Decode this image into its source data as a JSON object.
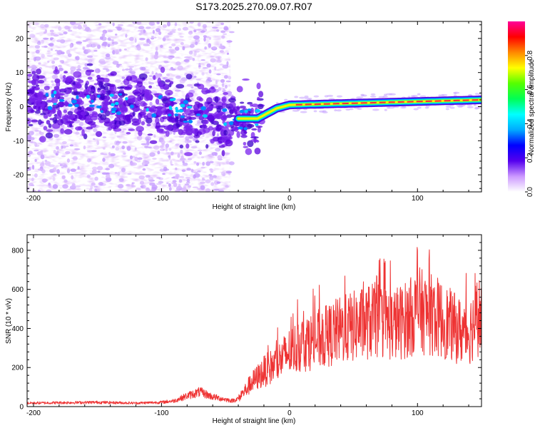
{
  "title": "S173.2025.270.09.07.R07",
  "chart_data": [
    {
      "type": "heatmap",
      "xlabel": "Height of straight line (km)",
      "ylabel": "Frequency (Hz)",
      "xlim": [
        -205,
        150
      ],
      "ylim": [
        -25,
        25
      ],
      "x_ticks": [
        -200,
        -100,
        0,
        100
      ],
      "y_ticks": [
        -20,
        -10,
        0,
        10,
        20
      ],
      "colorbar": {
        "label": "Normalized spectral amplitude",
        "range": [
          0,
          1
        ],
        "ticks": [
          "0.0",
          "0.2",
          "0.4",
          "0.6",
          "0.8"
        ],
        "tick_values": [
          0.0,
          0.2,
          0.4,
          0.6,
          0.8
        ],
        "colors": [
          "#ffffff",
          "#cc99ff",
          "#5500ee",
          "#0000ff",
          "#00aaff",
          "#00ffff",
          "#00ff55",
          "#55ff00",
          "#ffff00",
          "#ff8800",
          "#ff0000",
          "#ff0099"
        ]
      },
      "ridge": [
        {
          "x": -200,
          "freq": 1.5
        },
        {
          "x": -150,
          "freq": 1.5
        },
        {
          "x": -100,
          "freq": 0.0
        },
        {
          "x": -60,
          "freq": -3.0
        },
        {
          "x": -40,
          "freq": -3.5
        },
        {
          "x": -25,
          "freq": -3.5
        },
        {
          "x": -10,
          "freq": -0.5
        },
        {
          "x": 0,
          "freq": 0.5
        },
        {
          "x": 50,
          "freq": 1.0
        },
        {
          "x": 100,
          "freq": 1.5
        },
        {
          "x": 150,
          "freq": 2.0
        }
      ]
    },
    {
      "type": "line",
      "xlabel": "Height of straight line (km)",
      "ylabel": "SNR (10 * v/v)",
      "xlim": [
        -205,
        150
      ],
      "ylim": [
        0,
        880
      ],
      "x_ticks": [
        -200,
        -100,
        0,
        100
      ],
      "y_ticks": [
        0,
        200,
        400,
        600,
        800
      ],
      "series": [
        {
          "name": "SNR",
          "color": "#ee3333",
          "points": [
            [
              -205,
              18
            ],
            [
              -180,
              20
            ],
            [
              -150,
              22
            ],
            [
              -120,
              18
            ],
            [
              -100,
              22
            ],
            [
              -90,
              30
            ],
            [
              -80,
              55
            ],
            [
              -70,
              75
            ],
            [
              -60,
              50
            ],
            [
              -45,
              30
            ],
            [
              -40,
              40
            ],
            [
              -35,
              80
            ],
            [
              -30,
              120
            ],
            [
              -25,
              150
            ],
            [
              -20,
              180
            ],
            [
              -15,
              200
            ],
            [
              -10,
              220
            ],
            [
              -5,
              250
            ],
            [
              0,
              280
            ],
            [
              5,
              300
            ],
            [
              10,
              320
            ],
            [
              15,
              330
            ],
            [
              20,
              340
            ],
            [
              25,
              350
            ],
            [
              30,
              360
            ],
            [
              35,
              380
            ],
            [
              40,
              390
            ],
            [
              45,
              400
            ],
            [
              50,
              410
            ],
            [
              55,
              420
            ],
            [
              60,
              430
            ],
            [
              65,
              440
            ],
            [
              70,
              440
            ],
            [
              75,
              430
            ],
            [
              80,
              420
            ],
            [
              85,
              430
            ],
            [
              90,
              440
            ],
            [
              95,
              460
            ],
            [
              100,
              500
            ],
            [
              105,
              480
            ],
            [
              110,
              470
            ],
            [
              115,
              460
            ],
            [
              120,
              440
            ],
            [
              125,
              420
            ],
            [
              130,
              400
            ],
            [
              135,
              380
            ],
            [
              140,
              380
            ],
            [
              145,
              440
            ],
            [
              150,
              480
            ]
          ]
        }
      ]
    }
  ]
}
